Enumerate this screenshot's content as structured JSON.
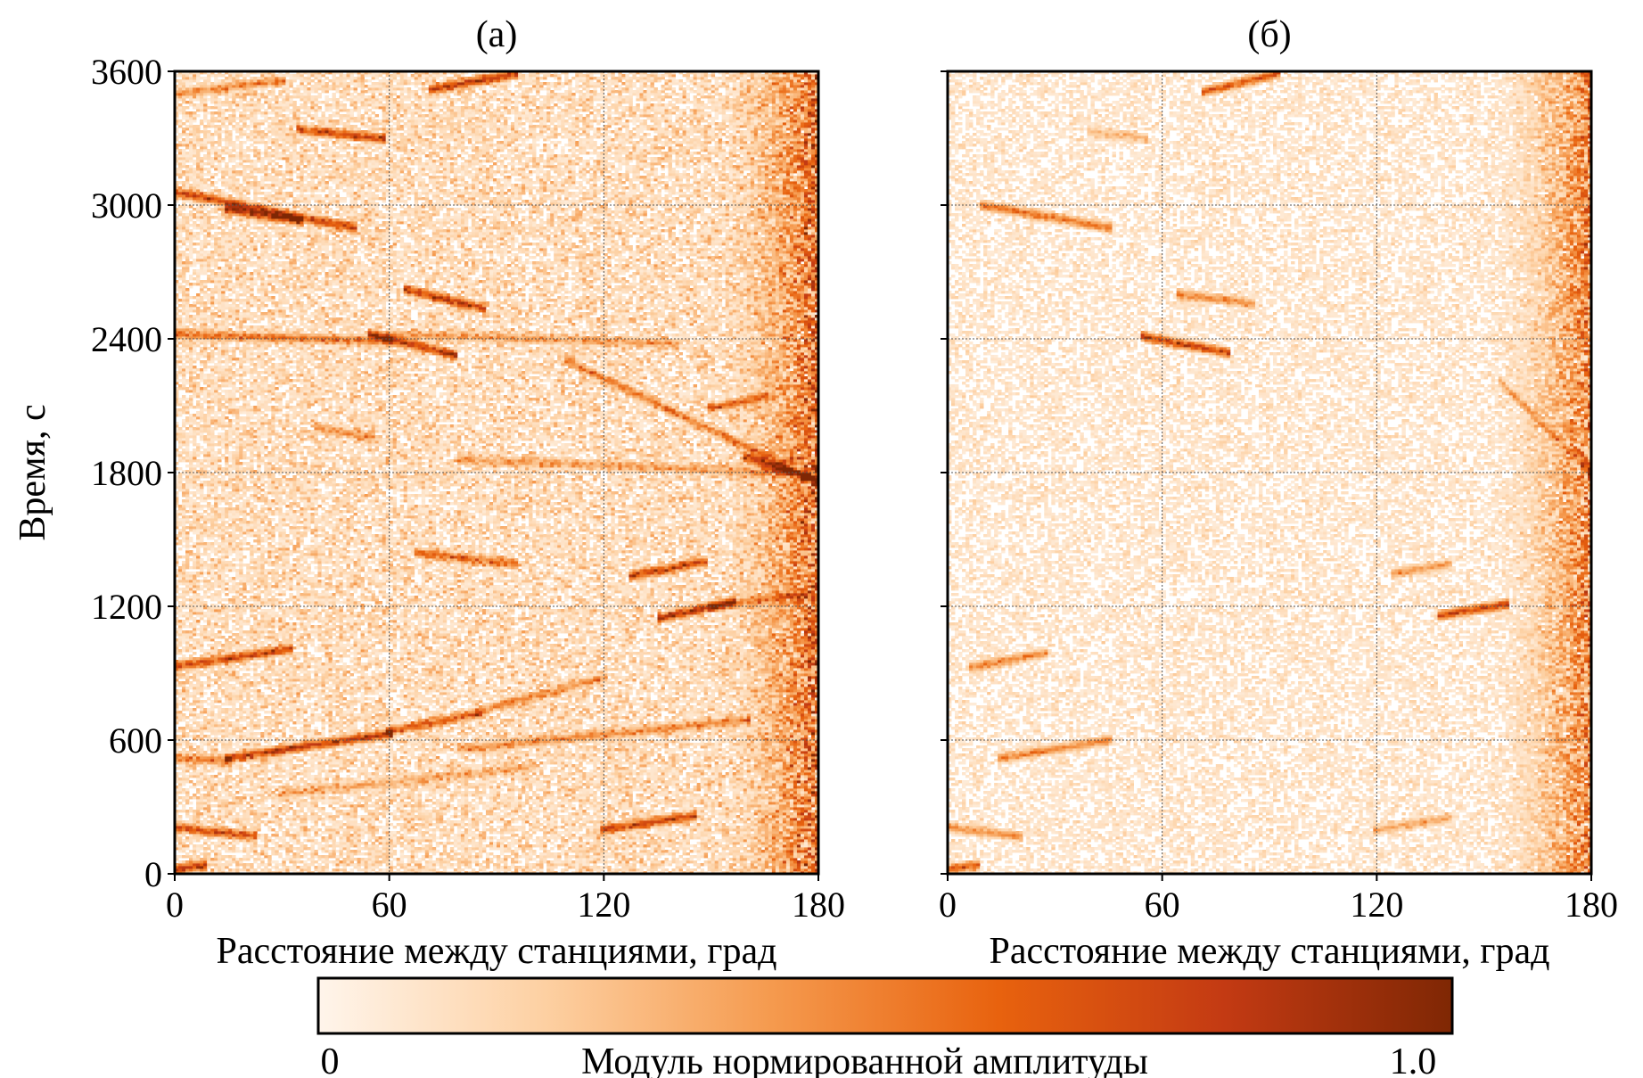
{
  "chart_data": [
    {
      "type": "heatmap",
      "title": "(а)",
      "xlabel": "Расстояние между станциями, град",
      "ylabel": "Время, с",
      "xlim": [
        0,
        180
      ],
      "ylim": [
        0,
        3600
      ],
      "xticks": [
        "0",
        "60",
        "120",
        "180"
      ],
      "yticks": [
        "0",
        "600",
        "1200",
        "1800",
        "2400",
        "3000",
        "3600"
      ],
      "grid": true,
      "noise_level": 0.32,
      "edge_noise": 0.9,
      "bands": [
        {
          "x0": 0,
          "t0": 3060,
          "x1": 50,
          "t1": 2900,
          "amp": 0.85
        },
        {
          "x0": 15,
          "t0": 2980,
          "x1": 35,
          "t1": 2930,
          "amp": 1.0
        },
        {
          "x0": 0,
          "t0": 3500,
          "x1": 30,
          "t1": 3560,
          "amp": 0.45
        },
        {
          "x0": 72,
          "t0": 3520,
          "x1": 95,
          "t1": 3590,
          "amp": 0.9
        },
        {
          "x0": 35,
          "t0": 3340,
          "x1": 58,
          "t1": 3300,
          "amp": 0.8
        },
        {
          "x0": 0,
          "t0": 2420,
          "x1": 60,
          "t1": 2390,
          "amp": 0.55
        },
        {
          "x0": 55,
          "t0": 2420,
          "x1": 78,
          "t1": 2330,
          "amp": 1.0
        },
        {
          "x0": 65,
          "t0": 2620,
          "x1": 86,
          "t1": 2540,
          "amp": 0.9
        },
        {
          "x0": 40,
          "t0": 2000,
          "x1": 55,
          "t1": 1960,
          "amp": 0.4
        },
        {
          "x0": 60,
          "t0": 2420,
          "x1": 140,
          "t1": 2380,
          "amp": 0.35
        },
        {
          "x0": 110,
          "t0": 2300,
          "x1": 180,
          "t1": 1760,
          "amp": 0.55
        },
        {
          "x0": 150,
          "t0": 2090,
          "x1": 165,
          "t1": 2140,
          "amp": 0.65
        },
        {
          "x0": 160,
          "t0": 1870,
          "x1": 180,
          "t1": 1760,
          "amp": 0.85
        },
        {
          "x0": 80,
          "t0": 1860,
          "x1": 170,
          "t1": 1800,
          "amp": 0.35
        },
        {
          "x0": 68,
          "t0": 1440,
          "x1": 95,
          "t1": 1390,
          "amp": 0.6
        },
        {
          "x0": 128,
          "t0": 1340,
          "x1": 148,
          "t1": 1400,
          "amp": 0.85
        },
        {
          "x0": 136,
          "t0": 1150,
          "x1": 156,
          "t1": 1220,
          "amp": 1.0
        },
        {
          "x0": 150,
          "t0": 1200,
          "x1": 178,
          "t1": 1260,
          "amp": 0.4
        },
        {
          "x0": 0,
          "t0": 930,
          "x1": 32,
          "t1": 1010,
          "amp": 0.85
        },
        {
          "x0": 15,
          "t0": 520,
          "x1": 60,
          "t1": 630,
          "amp": 0.9
        },
        {
          "x0": 60,
          "t0": 640,
          "x1": 85,
          "t1": 720,
          "amp": 0.7
        },
        {
          "x0": 85,
          "t0": 730,
          "x1": 120,
          "t1": 880,
          "amp": 0.45
        },
        {
          "x0": 0,
          "t0": 520,
          "x1": 15,
          "t1": 510,
          "amp": 0.5
        },
        {
          "x0": 80,
          "t0": 560,
          "x1": 160,
          "t1": 690,
          "amp": 0.45
        },
        {
          "x0": 30,
          "t0": 360,
          "x1": 100,
          "t1": 480,
          "amp": 0.3
        },
        {
          "x0": 120,
          "t0": 200,
          "x1": 145,
          "t1": 260,
          "amp": 0.85
        },
        {
          "x0": 0,
          "t0": 210,
          "x1": 22,
          "t1": 170,
          "amp": 0.75
        },
        {
          "x0": 0,
          "t0": 20,
          "x1": 8,
          "t1": 40,
          "amp": 0.9
        }
      ]
    },
    {
      "type": "heatmap",
      "title": "(б)",
      "xlabel": "Расстояние между станциями, град",
      "ylabel": "",
      "xlim": [
        0,
        180
      ],
      "ylim": [
        0,
        3600
      ],
      "xticks": [
        "0",
        "60",
        "120",
        "180"
      ],
      "yticks": [],
      "grid": true,
      "noise_level": 0.18,
      "edge_noise": 0.8,
      "bands": [
        {
          "x0": 10,
          "t0": 3000,
          "x1": 45,
          "t1": 2900,
          "amp": 0.65
        },
        {
          "x0": 72,
          "t0": 3510,
          "x1": 92,
          "t1": 3590,
          "amp": 0.8
        },
        {
          "x0": 40,
          "t0": 3330,
          "x1": 55,
          "t1": 3300,
          "amp": 0.3
        },
        {
          "x0": 55,
          "t0": 2410,
          "x1": 78,
          "t1": 2340,
          "amp": 0.95
        },
        {
          "x0": 65,
          "t0": 2600,
          "x1": 85,
          "t1": 2560,
          "amp": 0.55
        },
        {
          "x0": 155,
          "t0": 2200,
          "x1": 180,
          "t1": 1800,
          "amp": 0.4
        },
        {
          "x0": 125,
          "t0": 1350,
          "x1": 140,
          "t1": 1390,
          "amp": 0.45
        },
        {
          "x0": 138,
          "t0": 1160,
          "x1": 156,
          "t1": 1210,
          "amp": 0.9
        },
        {
          "x0": 7,
          "t0": 930,
          "x1": 27,
          "t1": 990,
          "amp": 0.55
        },
        {
          "x0": 15,
          "t0": 520,
          "x1": 45,
          "t1": 600,
          "amp": 0.55
        },
        {
          "x0": 120,
          "t0": 200,
          "x1": 140,
          "t1": 250,
          "amp": 0.4
        },
        {
          "x0": 0,
          "t0": 210,
          "x1": 20,
          "t1": 170,
          "amp": 0.5
        },
        {
          "x0": 0,
          "t0": 20,
          "x1": 8,
          "t1": 40,
          "amp": 0.85
        }
      ]
    }
  ],
  "colorbar": {
    "label": "Модуль нормированной амплитуды",
    "min_label": "0",
    "max_label": "1.0",
    "colors": [
      "#fff5eb",
      "#fdd0a2",
      "#f59a4e",
      "#e8620e",
      "#c33a13",
      "#7f2704"
    ]
  },
  "colors": {
    "grid": "#555555",
    "frame": "#000000"
  }
}
